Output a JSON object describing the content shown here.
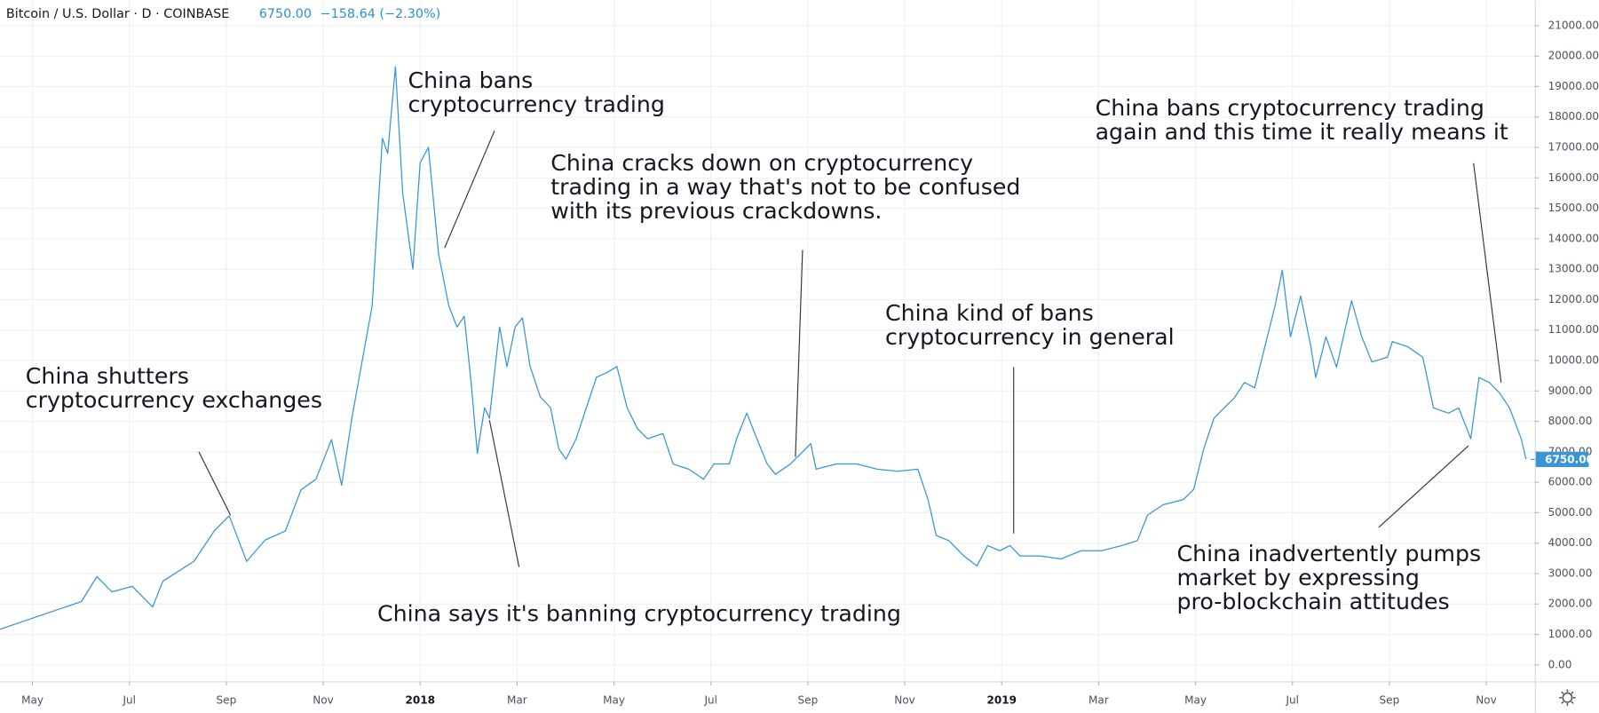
{
  "header": {
    "symbol": "Bitcoin / U.S. Dollar · D · COINBASE",
    "last": "6750.00",
    "change": "−158.64 (−2.30%)"
  },
  "chart_data": {
    "type": "line",
    "color": "#3a95d6",
    "grid": true,
    "xlim": [
      -0.67,
      31.0
    ],
    "ylim": [
      -540,
      21840
    ],
    "xticks": [
      {
        "value": 0,
        "label": "May"
      },
      {
        "value": 2,
        "label": "Jul"
      },
      {
        "value": 4,
        "label": "Sep"
      },
      {
        "value": 6,
        "label": "Nov"
      },
      {
        "value": 8,
        "label": "2018"
      },
      {
        "value": 10,
        "label": "Mar"
      },
      {
        "value": 12,
        "label": "May"
      },
      {
        "value": 14,
        "label": "Jul"
      },
      {
        "value": 16,
        "label": "Sep"
      },
      {
        "value": 18,
        "label": "Nov"
      },
      {
        "value": 20,
        "label": "2019"
      },
      {
        "value": 22,
        "label": "Mar"
      },
      {
        "value": 24,
        "label": "May"
      },
      {
        "value": 26,
        "label": "Jul"
      },
      {
        "value": 28,
        "label": "Sep"
      },
      {
        "value": 30,
        "label": "Nov"
      }
    ],
    "yticks": [
      {
        "value": 0,
        "label": "0.00"
      },
      {
        "value": 1000,
        "label": "1000.00"
      },
      {
        "value": 2000,
        "label": "2000.00"
      },
      {
        "value": 3000,
        "label": "3000.00"
      },
      {
        "value": 4000,
        "label": "4000.00"
      },
      {
        "value": 5000,
        "label": "5000.00"
      },
      {
        "value": 6000,
        "label": "6000.00"
      },
      {
        "value": 7000,
        "label": "7000.00"
      },
      {
        "value": 8000,
        "label": "8000.00"
      },
      {
        "value": 9000,
        "label": "9000.00"
      },
      {
        "value": 10000,
        "label": "10000.00"
      },
      {
        "value": 11000,
        "label": "11000.00"
      },
      {
        "value": 12000,
        "label": "12000.00"
      },
      {
        "value": 13000,
        "label": "13000.00"
      },
      {
        "value": 14000,
        "label": "14000.00"
      },
      {
        "value": 15000,
        "label": "15000.00"
      },
      {
        "value": 16000,
        "label": "16000.00"
      },
      {
        "value": 17000,
        "label": "17000.00"
      },
      {
        "value": 18000,
        "label": "18000.00"
      },
      {
        "value": 19000,
        "label": "19000.00"
      },
      {
        "value": 20000,
        "label": "20000.00"
      },
      {
        "value": 21000,
        "label": "21000.00"
      }
    ],
    "price_marker": {
      "value": 6750,
      "label": "6750.00"
    },
    "x": [
      -0.67,
      0.38,
      1.01,
      1.33,
      1.64,
      2.06,
      2.48,
      2.69,
      3.33,
      3.75,
      4.06,
      4.42,
      4.8,
      5.22,
      5.54,
      5.85,
      6.17,
      6.38,
      6.59,
      6.8,
      7.01,
      7.22,
      7.33,
      7.49,
      7.64,
      7.85,
      8.0,
      8.17,
      8.38,
      8.59,
      8.76,
      8.91,
      9.05,
      9.18,
      9.33,
      9.43,
      9.64,
      9.79,
      9.96,
      10.11,
      10.27,
      10.48,
      10.69,
      10.86,
      11.01,
      11.22,
      11.43,
      11.64,
      11.85,
      12.06,
      12.27,
      12.48,
      12.69,
      13.01,
      13.22,
      13.54,
      13.85,
      14.06,
      14.38,
      14.53,
      14.74,
      14.95,
      15.16,
      15.33,
      15.64,
      15.85,
      16.06,
      16.17,
      16.59,
      17.01,
      17.43,
      17.85,
      18.27,
      18.48,
      18.65,
      18.91,
      19.22,
      19.49,
      19.71,
      19.96,
      20.17,
      20.38,
      20.8,
      21.22,
      21.64,
      22.06,
      22.48,
      22.8,
      23.01,
      23.33,
      23.75,
      23.96,
      24.17,
      24.38,
      24.59,
      24.8,
      25.01,
      25.22,
      25.43,
      25.64,
      25.79,
      25.96,
      26.17,
      26.38,
      26.48,
      26.69,
      26.91,
      27.22,
      27.43,
      27.64,
      27.96,
      28.06,
      28.38,
      28.69,
      28.91,
      29.22,
      29.43,
      29.68,
      29.85,
      30.06,
      30.27,
      30.48,
      30.72,
      30.82
    ],
    "values": [
      1170,
      1740,
      2080,
      2900,
      2400,
      2580,
      1900,
      2750,
      3400,
      4400,
      4900,
      3400,
      4100,
      4400,
      5750,
      6100,
      7400,
      5900,
      8100,
      9950,
      11800,
      17300,
      16800,
      19650,
      15500,
      13000,
      16500,
      17000,
      13500,
      11800,
      11100,
      11450,
      9300,
      6950,
      8450,
      8100,
      11100,
      9800,
      11100,
      11400,
      9800,
      8800,
      8450,
      7100,
      6760,
      7430,
      8450,
      9450,
      9600,
      9800,
      8450,
      7770,
      7430,
      7600,
      6600,
      6430,
      6100,
      6600,
      6600,
      7430,
      8270,
      7430,
      6600,
      6260,
      6600,
      6930,
      7270,
      6430,
      6600,
      6600,
      6430,
      6360,
      6430,
      5430,
      4250,
      4080,
      3580,
      3250,
      3920,
      3750,
      3920,
      3580,
      3580,
      3480,
      3750,
      3750,
      3920,
      4080,
      4920,
      5260,
      5430,
      5760,
      7100,
      8100,
      8440,
      8770,
      9280,
      9100,
      10450,
      11790,
      12960,
      10780,
      12120,
      10450,
      9440,
      10780,
      9780,
      11960,
      10780,
      9950,
      10110,
      10620,
      10450,
      10110,
      8440,
      8270,
      8440,
      7430,
      9440,
      9280,
      8940,
      8440,
      7430,
      6760
    ],
    "annotations": [
      {
        "lines": [
          "China shutters",
          "cryptocurrency exchanges"
        ]
      },
      {
        "lines": [
          "China bans",
          "cryptocurrency trading"
        ]
      },
      {
        "lines": [
          "China cracks down on cryptocurrency",
          "trading in a way that's not to be confused",
          "with its previous crackdowns."
        ]
      },
      {
        "lines": [
          "China kind of bans",
          "cryptocurrency in general"
        ]
      },
      {
        "lines": [
          "China bans cryptocurrency trading",
          "again and this time it really means it"
        ]
      },
      {
        "lines": [
          "China says it's banning cryptocurrency trading"
        ]
      },
      {
        "lines": [
          "China inadvertently pumps",
          "market by expressing",
          "pro-blockchain attitudes"
        ]
      }
    ]
  }
}
